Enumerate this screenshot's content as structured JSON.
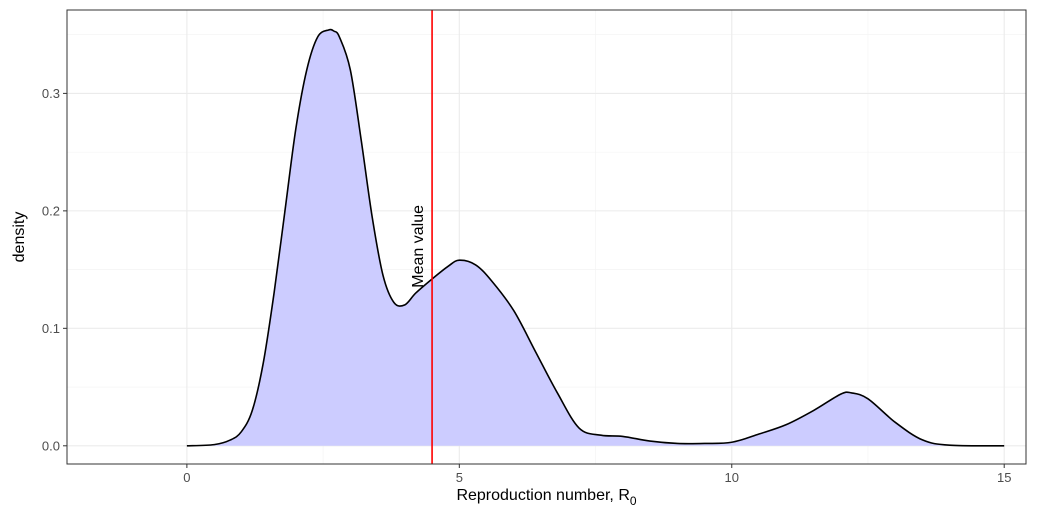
{
  "chart_data": {
    "type": "area",
    "xlabel": "Reproduction number, R",
    "xlabel_subscript": "0",
    "ylabel": "density",
    "xlim": [
      -2.2,
      15.4
    ],
    "ylim": [
      -0.0155,
      0.371
    ],
    "x_ticks": [
      0,
      5,
      10,
      15
    ],
    "x_tick_labels": [
      "0",
      "5",
      "10",
      "15"
    ],
    "y_ticks": [
      0.0,
      0.1,
      0.2,
      0.3
    ],
    "y_tick_labels": [
      "0.0",
      "0.1",
      "0.2",
      "0.3"
    ],
    "x_minor_ticks": [
      2.5,
      7.5,
      12.5
    ],
    "y_minor_ticks": [
      0.05,
      0.15,
      0.25,
      0.35
    ],
    "grid": true,
    "fill_color": "#ccccff",
    "line_color": "#000000",
    "mean": {
      "x": 4.5,
      "label": "Mean value",
      "color": "#ff0000"
    },
    "x": [
      0,
      0.5,
      0.8,
      1.0,
      1.2,
      1.4,
      1.6,
      1.8,
      2.0,
      2.2,
      2.4,
      2.6,
      2.7,
      2.8,
      3.0,
      3.2,
      3.4,
      3.6,
      3.8,
      4.0,
      4.2,
      4.5,
      4.8,
      5.0,
      5.3,
      5.6,
      6.0,
      6.4,
      6.8,
      7.2,
      7.6,
      8.0,
      8.5,
      9.0,
      9.5,
      10.0,
      10.5,
      11.0,
      11.5,
      12.0,
      12.2,
      12.5,
      13.0,
      13.5,
      14.0,
      15.0
    ],
    "y": [
      0.0,
      0.001,
      0.005,
      0.012,
      0.03,
      0.07,
      0.13,
      0.2,
      0.27,
      0.32,
      0.348,
      0.354,
      0.353,
      0.348,
      0.32,
      0.26,
      0.195,
      0.145,
      0.122,
      0.12,
      0.13,
      0.142,
      0.153,
      0.158,
      0.154,
      0.14,
      0.115,
      0.08,
      0.045,
      0.015,
      0.009,
      0.008,
      0.004,
      0.002,
      0.002,
      0.003,
      0.01,
      0.018,
      0.03,
      0.044,
      0.045,
      0.04,
      0.02,
      0.005,
      0.0005,
      0.0
    ]
  }
}
